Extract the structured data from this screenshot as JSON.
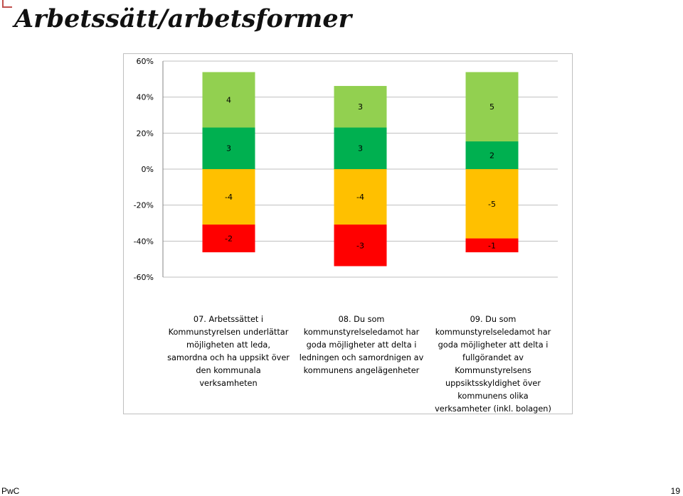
{
  "slide": {
    "title": "Arbetssätt/arbetsformer",
    "footer_left": "PwC",
    "page_number": "19"
  },
  "chart_data": {
    "type": "bar",
    "stacked": true,
    "ylim": [
      -60,
      60
    ],
    "yticks": [
      60,
      40,
      20,
      0,
      -20,
      -40,
      -60
    ],
    "ytick_labels": [
      "60%",
      "40%",
      "20%",
      "0%",
      "-20%",
      "-40%",
      "-60%"
    ],
    "grid": true,
    "categories": [
      "07. Arbetssättet i\nKommunstyrelsen underlättar\nmöjligheten att leda,\nsamordna och ha uppsikt över\nden kommunala\nverksamheten",
      "08. Du som\nkommunstyrelseledamot har\ngoda möjligheter att delta i\nledningen och samordnigen av\nkommunens angelägenheter",
      "09. Du som\nkommunstyrelseledamot har\ngoda möjligheter att delta i\nfullgörandet av\nKommunstyrelsens\nuppsiktsskyldighet över\nkommunens olika\nverksamheter (inkl. bolagen)"
    ],
    "series": [
      {
        "color": "#00b050",
        "counts": [
          3,
          3,
          2
        ],
        "percent": [
          23.1,
          23.1,
          15.4
        ]
      },
      {
        "color": "#92d050",
        "counts": [
          4,
          3,
          5
        ],
        "percent": [
          30.8,
          23.1,
          38.5
        ]
      },
      {
        "color": "#ffc000",
        "counts": [
          -4,
          -4,
          -5
        ],
        "percent": [
          -30.8,
          -30.8,
          -38.5
        ]
      },
      {
        "color": "#ff0000",
        "counts": [
          -2,
          -3,
          -1
        ],
        "percent": [
          -15.4,
          -23.1,
          -7.7
        ]
      }
    ]
  }
}
